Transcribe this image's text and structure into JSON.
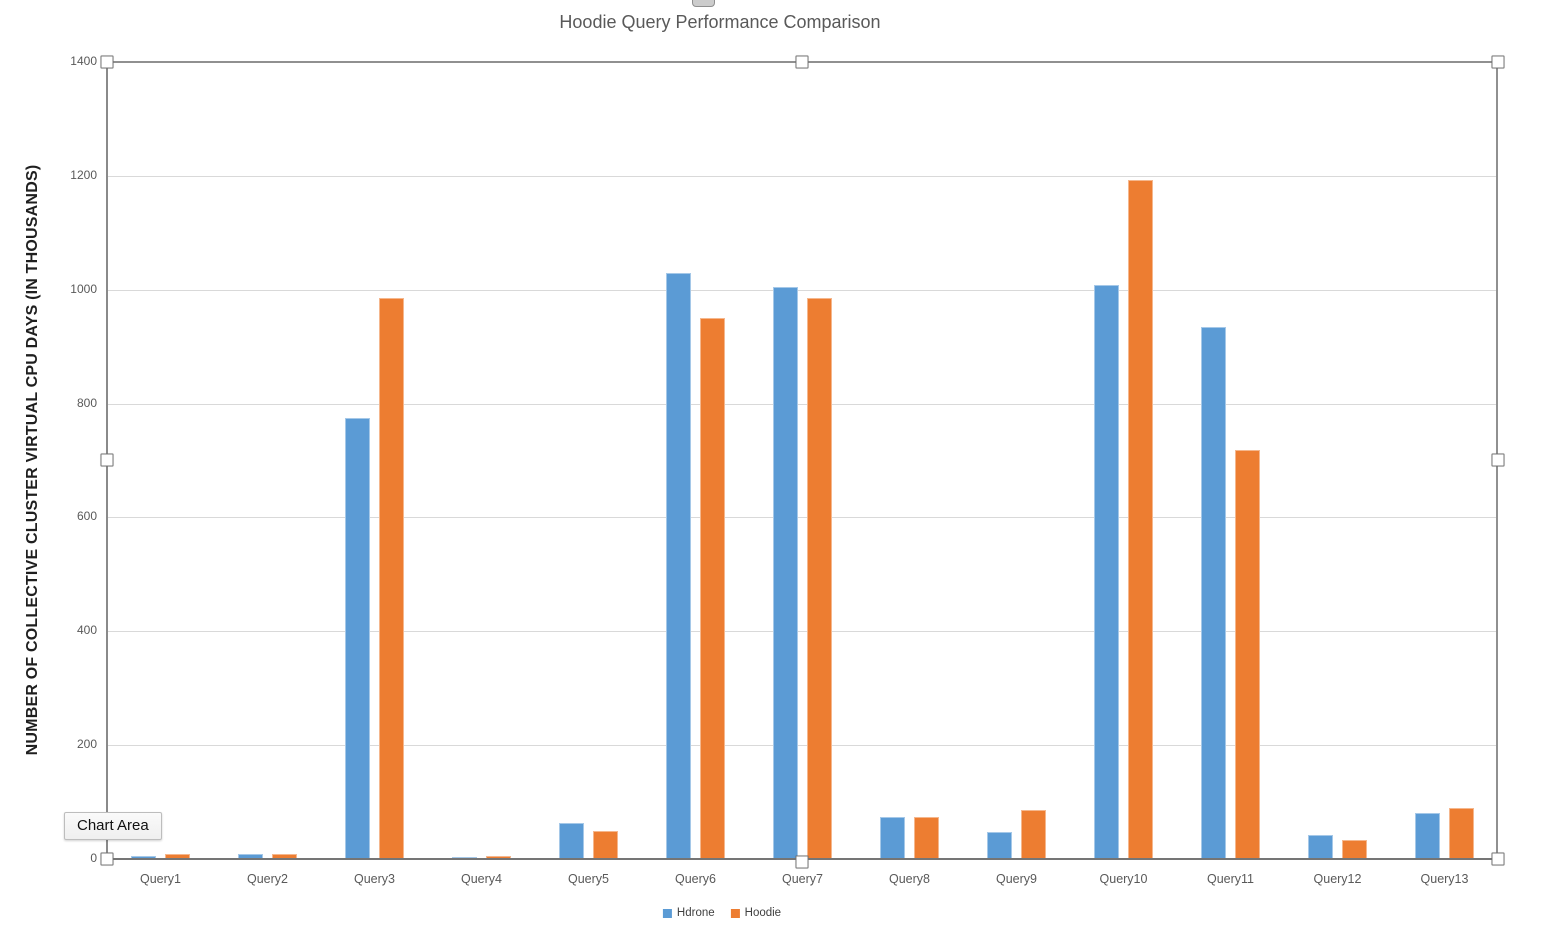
{
  "tooltip": {
    "label": "Chart Area"
  },
  "chart_data": {
    "type": "bar",
    "title": "Hoodie Query Performance Comparison",
    "ylabel": "NUMBER OF COLLECTIVE CLUSTER VIRTUAL CPU DAYS (IN THOUSANDS)",
    "xlabel": "",
    "categories": [
      "Query1",
      "Query2",
      "Query3",
      "Query4",
      "Query5",
      "Query6",
      "Query7",
      "Query8",
      "Query9",
      "Query10",
      "Query11",
      "Query12",
      "Query13"
    ],
    "series": [
      {
        "name": "Hdrone",
        "color": "#5B9BD5",
        "values": [
          5,
          8,
          775,
          4,
          63,
          1030,
          1005,
          73,
          48,
          1008,
          935,
          42,
          81
        ]
      },
      {
        "name": "Hoodie",
        "color": "#ED7D31",
        "values": [
          8,
          8,
          985,
          5,
          50,
          950,
          985,
          74,
          86,
          1193,
          718,
          33,
          90
        ]
      }
    ],
    "ylim": [
      0,
      1400
    ],
    "yticks": [
      0,
      200,
      400,
      600,
      800,
      1000,
      1200,
      1400
    ],
    "grid": true,
    "legend_position": "bottom"
  },
  "colors": {
    "gridline": "#d9d9d9",
    "axis_line": "#808080",
    "title_text": "#595959",
    "tick_text": "#595959",
    "series_blue": "#5B9BD5",
    "series_orange": "#ED7D31"
  }
}
